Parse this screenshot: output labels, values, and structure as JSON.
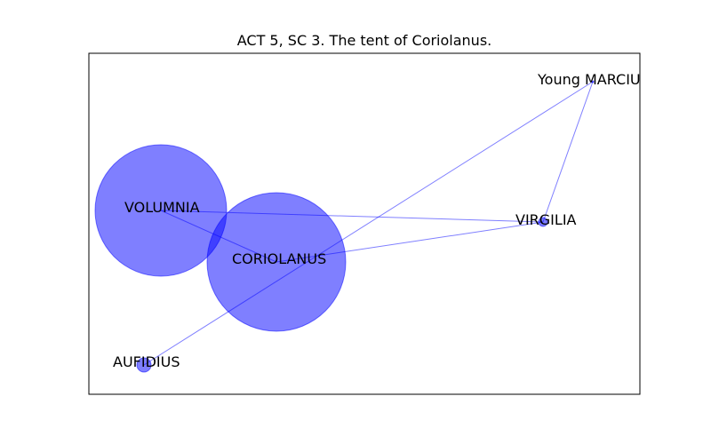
{
  "title": "ACT 5, SC 3. The tent of Coriolanus.",
  "colors": {
    "node_fill": "#0000ff",
    "edge": "#0000ff",
    "frame": "#000000",
    "background": "#ffffff"
  },
  "graph": {
    "nodes": [
      {
        "id": "VOLUMNIA",
        "label": "VOLUMNIA"
      },
      {
        "id": "CORIOLANUS",
        "label": "CORIOLANUS"
      },
      {
        "id": "VIRGILIA",
        "label": "VIRGILIA"
      },
      {
        "id": "AUFIDIUS",
        "label": "AUFIDIUS"
      },
      {
        "id": "YOUNG_MARCIUS",
        "label": "Young MARCIUS"
      }
    ],
    "edges": [
      {
        "source": "VOLUMNIA",
        "target": "VIRGILIA"
      },
      {
        "source": "VOLUMNIA",
        "target": "CORIOLANUS"
      },
      {
        "source": "CORIOLANUS",
        "target": "VIRGILIA"
      },
      {
        "source": "VIRGILIA",
        "target": "YOUNG_MARCIUS"
      },
      {
        "source": "AUFIDIUS",
        "target": "YOUNG_MARCIUS"
      }
    ]
  }
}
